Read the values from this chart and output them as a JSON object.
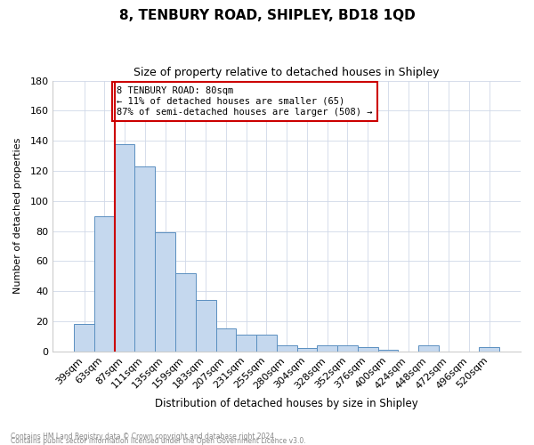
{
  "title": "8, TENBURY ROAD, SHIPLEY, BD18 1QD",
  "subtitle": "Size of property relative to detached houses in Shipley",
  "xlabel": "Distribution of detached houses by size in Shipley",
  "ylabel": "Number of detached properties",
  "footnote1": "Contains HM Land Registry data © Crown copyright and database right 2024.",
  "footnote2": "Contains public sector information licensed under the Open Government Licence v3.0.",
  "annotation_line1": "8 TENBURY ROAD: 80sqm",
  "annotation_line2": "← 11% of detached houses are smaller (65)",
  "annotation_line3": "87% of semi-detached houses are larger (508) →",
  "bar_color": "#c5d8ee",
  "bar_edge_color": "#5a8fc0",
  "marker_color": "#cc0000",
  "categories": [
    "39sqm",
    "63sqm",
    "87sqm",
    "111sqm",
    "135sqm",
    "159sqm",
    "183sqm",
    "207sqm",
    "231sqm",
    "255sqm",
    "280sqm",
    "304sqm",
    "328sqm",
    "352sqm",
    "376sqm",
    "400sqm",
    "424sqm",
    "448sqm",
    "472sqm",
    "496sqm",
    "520sqm"
  ],
  "values": [
    18,
    90,
    138,
    123,
    79,
    52,
    34,
    15,
    11,
    11,
    4,
    2,
    4,
    4,
    3,
    1,
    0,
    4,
    0,
    0,
    3
  ],
  "ylim": [
    0,
    180
  ],
  "yticks": [
    0,
    20,
    40,
    60,
    80,
    100,
    120,
    140,
    160,
    180
  ],
  "marker_bar_index": 2,
  "title_fontsize": 11,
  "subtitle_fontsize": 9
}
